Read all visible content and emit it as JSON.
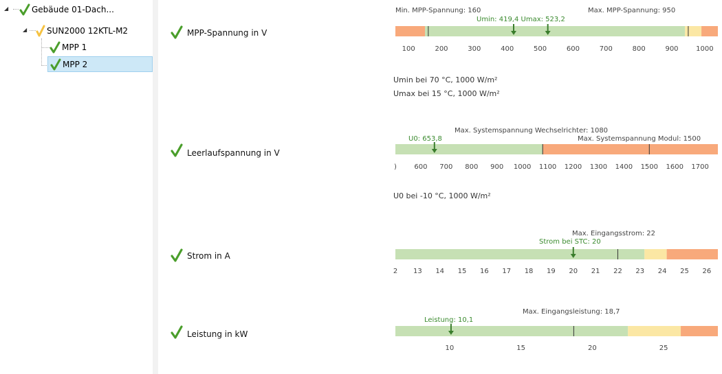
{
  "tree": {
    "root_label": "Gebäude 01-Dach...",
    "inverter_label": "SUN2000 12KTL-M2",
    "mpp1_label": "MPP 1",
    "mpp2_label": "MPP 2"
  },
  "colors": {
    "green": "#c6e0b4",
    "orange": "#f8a97b",
    "yellow": "#fbe7a4",
    "check": "#4a9e2b",
    "check_warn": "#f5c242"
  },
  "checks": [
    {
      "label": "MPP-Spannung in V",
      "ticks": [
        "100",
        "200",
        "300",
        "400",
        "500",
        "600",
        "700",
        "800",
        "900",
        "1000"
      ],
      "annotations": {
        "min": "Min. MPP-Spannung: 160",
        "max": "Max. MPP-Spannung: 950",
        "umin_umax": "Umin: 419,4  Umax: 523,2"
      },
      "notes": [
        "Umin bei 70 °C, 1000 W/m²",
        "Umax bei 15 °C, 1000 W/m²"
      ],
      "range": [
        60,
        1040
      ],
      "segments": [
        {
          "from": 60,
          "to": 150,
          "color": "orange"
        },
        {
          "from": 150,
          "to": 940,
          "color": "green"
        },
        {
          "from": 940,
          "to": 990,
          "color": "yellow"
        },
        {
          "from": 990,
          "to": 1040,
          "color": "orange"
        }
      ],
      "markers": [
        160,
        950
      ],
      "arrows": [
        419.4,
        523.2
      ]
    },
    {
      "label": "Leerlaufspannung in V",
      "ticks": [
        ")",
        "600",
        "700",
        "800",
        "900",
        "1000",
        "1100",
        "1200",
        "1300",
        "1400",
        "1500",
        "1600",
        "1700"
      ],
      "annotations": {
        "u0": "U0: 653,8",
        "max_wr": "Max. Systemspannung Wechselrichter: 1080",
        "max_mod": "Max. Systemspannung Modul: 1500"
      },
      "notes": [
        "U0 bei -10 °C, 1000 W/m²"
      ],
      "range": [
        500,
        1770
      ],
      "segments": [
        {
          "from": 500,
          "to": 1080,
          "color": "green"
        },
        {
          "from": 1080,
          "to": 1770,
          "color": "orange"
        }
      ],
      "markers": [
        1080,
        1500
      ],
      "arrows": [
        653.8
      ]
    },
    {
      "label": "Strom in A",
      "ticks": [
        "2",
        "13",
        "14",
        "15",
        "16",
        "17",
        "18",
        "19",
        "20",
        "21",
        "22",
        "23",
        "24",
        "25",
        "26"
      ],
      "annotations": {
        "max": "Max. Eingangsstrom: 22",
        "stc": "Strom bei STC: 20"
      },
      "notes": [],
      "range": [
        12,
        26.5
      ],
      "segments": [
        {
          "from": 12,
          "to": 23.2,
          "color": "green"
        },
        {
          "from": 23.2,
          "to": 24.2,
          "color": "yellow"
        },
        {
          "from": 24.2,
          "to": 26.5,
          "color": "orange"
        }
      ],
      "markers": [
        22
      ],
      "arrows": [
        20
      ]
    },
    {
      "label": "Leistung in kW",
      "ticks": [
        "10",
        "15",
        "20",
        "25"
      ],
      "annotations": {
        "max": "Max. Eingangsleistung: 18,7",
        "actual": "Leistung: 10,1"
      },
      "notes": [],
      "range": [
        6.2,
        28.8
      ],
      "segments": [
        {
          "from": 6.2,
          "to": 22.5,
          "color": "green"
        },
        {
          "from": 22.5,
          "to": 26.2,
          "color": "yellow"
        },
        {
          "from": 26.2,
          "to": 28.8,
          "color": "orange"
        }
      ],
      "markers": [
        18.7
      ],
      "arrows": [
        10.1
      ]
    }
  ]
}
